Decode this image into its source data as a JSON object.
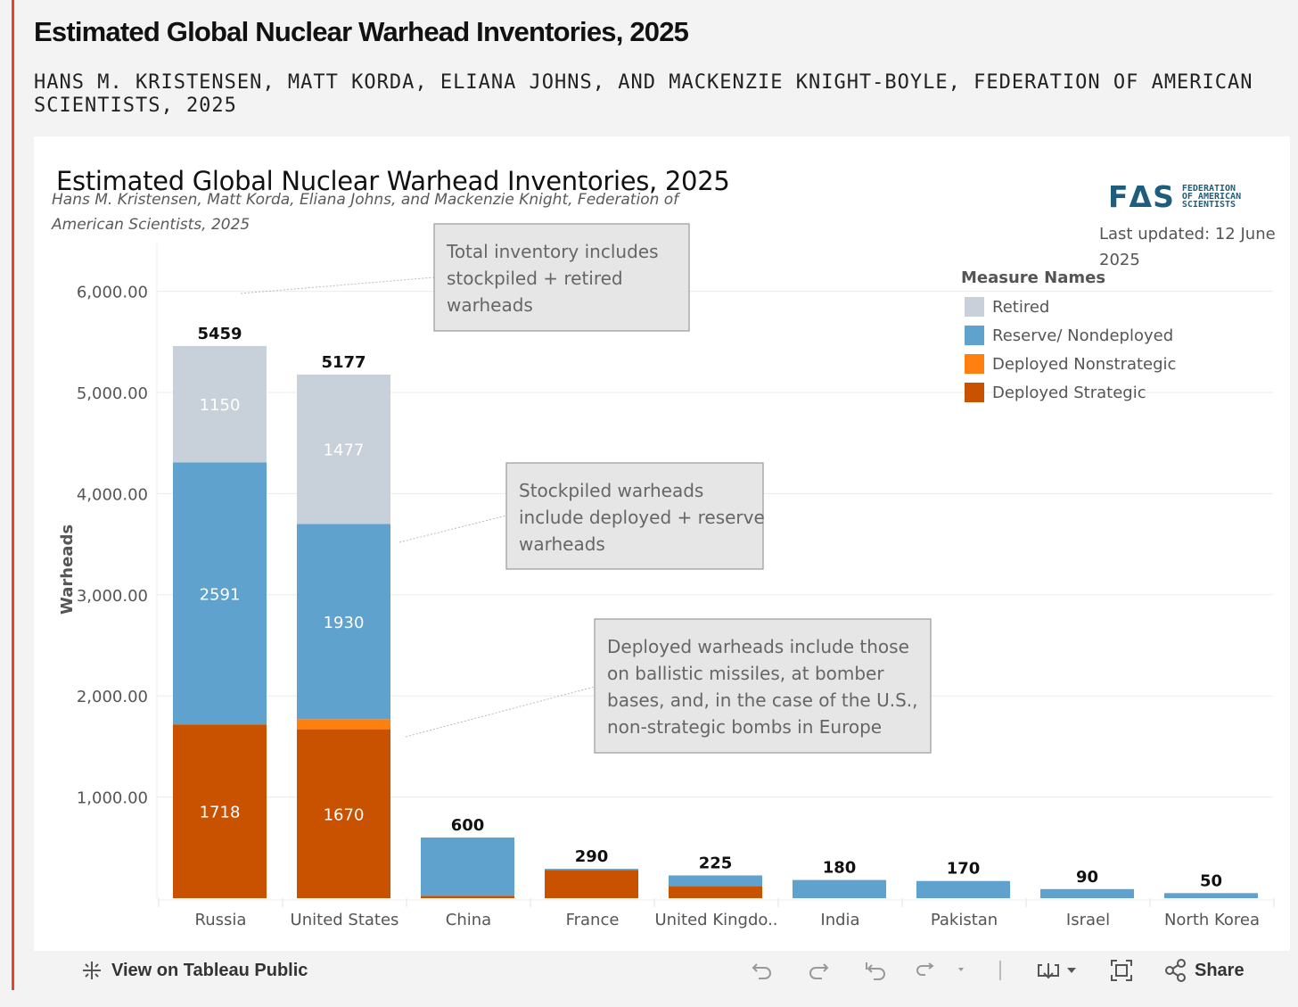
{
  "page": {
    "title": "Estimated Global Nuclear Warhead Inventories, 2025",
    "subtitle": "HANS M. KRISTENSEN, MATT KORDA, ELIANA JOHNS, AND MACKENZIE KNIGHT-BOYLE, FEDERATION OF AMERICAN SCIENTISTS, 2025"
  },
  "viz": {
    "title": "Estimated Global Nuclear Warhead Inventories, 2025",
    "byline": "Hans M. Kristensen, Matt Korda, Eliana Johns, and Mackenzie Knight, Federation of American Scientists, 2025",
    "logo_mark": "FΔS",
    "logo_text": [
      "FEDERATION",
      "OF AMERICAN",
      "SCIENTISTS"
    ],
    "last_updated": "Last updated: 12 June 2025"
  },
  "annotations": [
    "Total inventory includes stockpiled + retired warheads",
    "Stockpiled warheads include deployed + reserve warheads",
    "Deployed warheads include those on ballistic missiles, at bomber bases, and, in the case of the U.S., non-strategic bombs in Europe"
  ],
  "toolbar": {
    "view_label": "View on Tableau Public",
    "share_label": "Share"
  },
  "chart_data": {
    "type": "bar",
    "stacked": true,
    "title": "Estimated Global Nuclear Warhead Inventories, 2025",
    "ylabel": "Warheads",
    "xlabel": "",
    "ylim": [
      0,
      6500
    ],
    "yticks": [
      1000,
      2000,
      3000,
      4000,
      5000,
      6000
    ],
    "ytick_labels": [
      "1,000.00",
      "2,000.00",
      "3,000.00",
      "4,000.00",
      "5,000.00",
      "6,000.00"
    ],
    "categories": [
      "Russia",
      "United States",
      "China",
      "France",
      "United Kingdo..",
      "India",
      "Pakistan",
      "Israel",
      "North Korea"
    ],
    "totals": [
      5459,
      5177,
      600,
      290,
      225,
      180,
      170,
      90,
      50
    ],
    "legend_title": "Measure Names",
    "legend_position": "top-right",
    "series": [
      {
        "name": "Deployed Strategic",
        "color": "#c85200",
        "values": [
          1718,
          1670,
          24,
          280,
          120,
          0,
          0,
          0,
          0
        ],
        "labels": [
          "1718",
          "1670",
          "",
          "",
          "",
          "",
          "",
          "",
          ""
        ]
      },
      {
        "name": "Deployed Nonstrategic",
        "color": "#ff800e",
        "values": [
          0,
          100,
          0,
          0,
          0,
          0,
          0,
          0,
          0
        ],
        "labels": [
          "",
          "",
          "",
          "",
          "",
          "",
          "",
          "",
          ""
        ]
      },
      {
        "name": "Reserve/ Nondeployed",
        "color": "#5fa2ce",
        "values": [
          2591,
          1930,
          576,
          10,
          105,
          180,
          170,
          90,
          50
        ],
        "labels": [
          "2591",
          "1930",
          "",
          "",
          "",
          "",
          "",
          "",
          ""
        ]
      },
      {
        "name": "Retired",
        "color": "#c8d0d9",
        "values": [
          1150,
          1477,
          0,
          0,
          0,
          0,
          0,
          0,
          0
        ],
        "labels": [
          "1150",
          "1477",
          "",
          "",
          "",
          "",
          "",
          "",
          ""
        ]
      }
    ],
    "legend_order": [
      "Retired",
      "Reserve/ Nondeployed",
      "Deployed Nonstrategic",
      "Deployed Strategic"
    ]
  }
}
